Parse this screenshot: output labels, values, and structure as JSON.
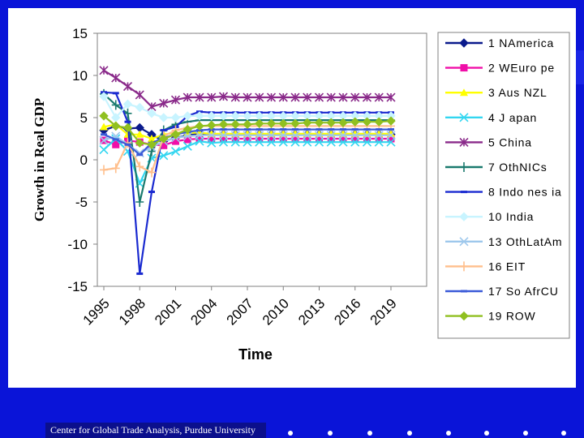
{
  "footer": {
    "text": "Center for Global Trade Analysis, Purdue University"
  },
  "chart_data": {
    "type": "line",
    "title": "",
    "xlabel": "Time",
    "ylabel": "Growth in Real GDP",
    "ylim": [
      -15,
      15
    ],
    "yticks": [
      15,
      10,
      5,
      0,
      -5,
      -10,
      -15
    ],
    "xticks": [
      "1995",
      "1998",
      "2001",
      "2004",
      "2007",
      "2010",
      "2013",
      "2016",
      "2019"
    ],
    "x_start": 1995,
    "legend_position": "right",
    "grid": false,
    "series": [
      {
        "name": "1 NAmerica",
        "color": "#0a1a8c",
        "marker": "diamond",
        "values": [
          3.5,
          4.0,
          3.7,
          3.8,
          3.0,
          2.2,
          2.6,
          2.9,
          3.1,
          3.1,
          3.0,
          3.0,
          3.0,
          3.0,
          3.0,
          3.0,
          3.0,
          3.0,
          3.0,
          3.0,
          3.0,
          3.0,
          3.0,
          3.0,
          3.0
        ]
      },
      {
        "name": "2 WEuro pe",
        "color": "#f00fa8",
        "marker": "square",
        "values": [
          2.3,
          1.8,
          2.3,
          2.1,
          1.8,
          1.7,
          2.2,
          2.4,
          2.5,
          2.5,
          2.5,
          2.5,
          2.5,
          2.5,
          2.5,
          2.5,
          2.5,
          2.5,
          2.5,
          2.5,
          2.5,
          2.5,
          2.5,
          2.5,
          2.5
        ]
      },
      {
        "name": "3 Aus NZL",
        "color": "#ffff00",
        "marker": "triangle",
        "values": [
          3.9,
          4.2,
          3.0,
          3.0,
          2.5,
          3.0,
          3.2,
          3.2,
          3.2,
          3.1,
          3.1,
          3.1,
          3.1,
          3.1,
          3.1,
          3.1,
          3.1,
          3.1,
          3.1,
          3.1,
          3.1,
          3.1,
          3.1,
          3.1,
          3.1
        ]
      },
      {
        "name": "4 J apan",
        "color": "#33d6f0",
        "marker": "x",
        "values": [
          1.2,
          2.5,
          1.0,
          -2.8,
          0.2,
          0.5,
          1.0,
          1.6,
          2.2,
          2.0,
          2.1,
          2.1,
          2.1,
          2.1,
          2.1,
          2.1,
          2.1,
          2.1,
          2.1,
          2.1,
          2.1,
          2.1,
          2.1,
          2.1,
          2.1
        ]
      },
      {
        "name": "5 China",
        "color": "#8a2a8a",
        "marker": "star",
        "values": [
          10.6,
          9.7,
          8.7,
          7.7,
          6.3,
          6.7,
          7.1,
          7.4,
          7.4,
          7.4,
          7.5,
          7.4,
          7.4,
          7.4,
          7.4,
          7.4,
          7.4,
          7.4,
          7.4,
          7.4,
          7.4,
          7.4,
          7.4,
          7.4,
          7.4
        ]
      },
      {
        "name": "7 OthNICs",
        "color": "#1a7a6e",
        "marker": "plus",
        "values": [
          7.8,
          6.5,
          5.5,
          -5.0,
          1.0,
          3.5,
          4.2,
          4.5,
          4.7,
          4.7,
          4.7,
          4.7,
          4.7,
          4.7,
          4.7,
          4.7,
          4.7,
          4.7,
          4.7,
          4.7,
          4.7,
          4.7,
          4.7,
          4.7,
          4.7
        ]
      },
      {
        "name": "8 Indo nes ia",
        "color": "#1a2ad0",
        "marker": "dash",
        "values": [
          8.0,
          7.9,
          4.5,
          -13.5,
          -3.8,
          3.5,
          3.9,
          5.2,
          5.7,
          5.6,
          5.6,
          5.6,
          5.6,
          5.6,
          5.6,
          5.6,
          5.6,
          5.6,
          5.6,
          5.6,
          5.6,
          5.6,
          5.6,
          5.6,
          5.6
        ]
      },
      {
        "name": "10 India",
        "color": "#c8f4ff",
        "marker": "diamond",
        "values": [
          7.5,
          5.0,
          6.6,
          6.2,
          5.5,
          5.0,
          5.0,
          5.2,
          5.2,
          5.2,
          5.2,
          5.2,
          5.2,
          5.2,
          5.2,
          5.2,
          5.2,
          5.2,
          5.2,
          5.2,
          5.2,
          5.2,
          5.2,
          5.2,
          5.2
        ]
      },
      {
        "name": "13 OthLatAm",
        "color": "#9ec8ec",
        "marker": "x",
        "values": [
          2.3,
          2.8,
          1.8,
          0.8,
          1.5,
          2.2,
          2.6,
          2.8,
          2.9,
          2.9,
          2.9,
          2.9,
          2.9,
          2.9,
          2.9,
          2.9,
          2.9,
          2.9,
          2.9,
          2.9,
          2.9,
          2.9,
          2.9,
          2.9,
          2.9
        ]
      },
      {
        "name": "16 EIT",
        "color": "#ffbf8c",
        "marker": "plus",
        "values": [
          -1.2,
          -1.0,
          2.0,
          -0.8,
          -1.5,
          2.8,
          3.5,
          3.8,
          4.0,
          4.0,
          4.0,
          4.0,
          4.0,
          4.0,
          4.0,
          4.0,
          4.0,
          4.0,
          4.0,
          4.0,
          4.0,
          4.0,
          4.0,
          4.0,
          4.0
        ]
      },
      {
        "name": "17 So AfrCU",
        "color": "#3a5ad8",
        "marker": "dash",
        "values": [
          3.0,
          2.4,
          1.8,
          0.6,
          2.0,
          2.6,
          3.0,
          3.3,
          3.5,
          3.6,
          3.6,
          3.6,
          3.6,
          3.6,
          3.6,
          3.6,
          3.6,
          3.6,
          3.6,
          3.6,
          3.6,
          3.6,
          3.6,
          3.6,
          3.6
        ]
      },
      {
        "name": "19 ROW",
        "color": "#90c020",
        "marker": "diamond",
        "values": [
          5.2,
          4.0,
          3.8,
          2.0,
          1.8,
          2.5,
          3.0,
          3.6,
          4.0,
          4.1,
          4.2,
          4.2,
          4.2,
          4.3,
          4.3,
          4.3,
          4.3,
          4.4,
          4.4,
          4.4,
          4.4,
          4.5,
          4.5,
          4.5,
          4.6
        ]
      }
    ]
  }
}
